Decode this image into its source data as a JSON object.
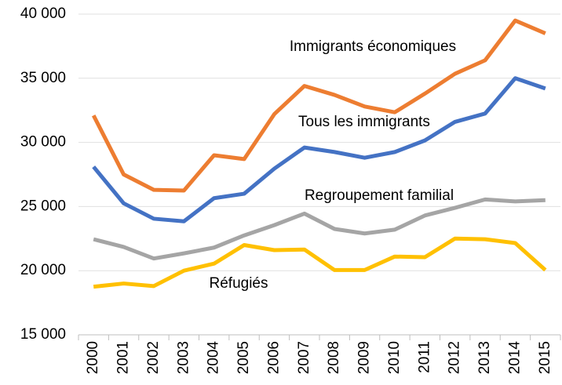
{
  "chart_data": {
    "type": "line",
    "categories": [
      "2000",
      "2001",
      "2002",
      "2003",
      "2004",
      "2005",
      "2006",
      "2007",
      "2008",
      "2009",
      "2010",
      "2011",
      "2012",
      "2013",
      "2014",
      "2015"
    ],
    "series": [
      {
        "name": "Immigrants économiques",
        "color": "#ed7d31",
        "values": [
          32100,
          27500,
          26300,
          26250,
          29000,
          28700,
          32200,
          34400,
          33700,
          32800,
          32350,
          33800,
          35350,
          36400,
          39500,
          38500
        ]
      },
      {
        "name": "Tous les immigrants",
        "color": "#4472c4",
        "values": [
          28100,
          25250,
          24050,
          23850,
          25650,
          26000,
          27950,
          29600,
          29250,
          28800,
          29250,
          30150,
          31600,
          32250,
          35000,
          34200
        ]
      },
      {
        "name": "Regroupement familial",
        "color": "#a5a5a5",
        "values": [
          22450,
          21850,
          20950,
          21350,
          21800,
          22750,
          23550,
          24450,
          23250,
          22900,
          23200,
          24300,
          24900,
          25550,
          25400,
          25500
        ]
      },
      {
        "name": "Réfugiés",
        "color": "#ffc000",
        "values": [
          18750,
          19000,
          18800,
          20000,
          20550,
          22000,
          21600,
          21650,
          20050,
          20050,
          21100,
          21050,
          22500,
          22450,
          22150,
          20050
        ]
      }
    ],
    "ylim": [
      15000,
      40000
    ],
    "yticks": [
      {
        "value": 15000,
        "label": "15 000"
      },
      {
        "value": 20000,
        "label": "20 000"
      },
      {
        "value": 25000,
        "label": "25 000"
      },
      {
        "value": 30000,
        "label": "30 000"
      },
      {
        "value": 35000,
        "label": "35 000"
      },
      {
        "value": 40000,
        "label": "40 000"
      }
    ],
    "grid": true
  }
}
